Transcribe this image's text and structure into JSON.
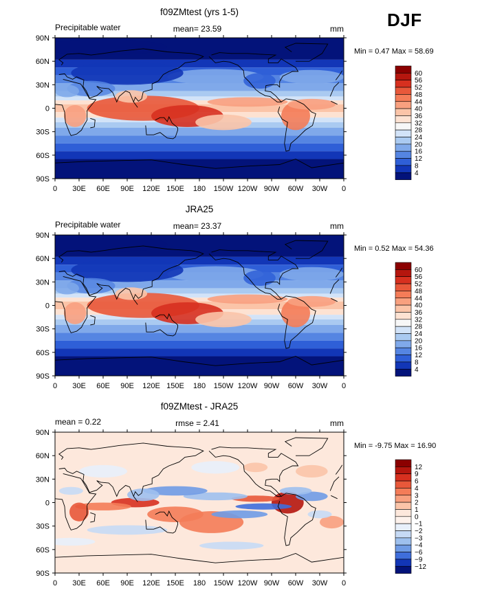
{
  "figure": {
    "season": "DJF"
  },
  "lon_ticks": [
    "0",
    "30E",
    "60E",
    "90E",
    "120E",
    "150E",
    "180",
    "150W",
    "120W",
    "90W",
    "60W",
    "30W",
    "0"
  ],
  "lat_ticks": [
    "90N",
    "60N",
    "30N",
    "0",
    "30S",
    "60S",
    "90S"
  ],
  "chart_data": [
    {
      "type": "heatmap",
      "title": "f09ZMtest (yrs 1-5)",
      "left_label": "Precipitable water",
      "center_label": "mean=  23.59",
      "units": "mm",
      "minmax": "Min =   0.47 Max =  58.69",
      "stats": {
        "mean": 23.59,
        "min": 0.47,
        "max": 58.69
      },
      "x": {
        "range": [
          0,
          360
        ],
        "ticks": [
          "0",
          "30E",
          "60E",
          "90E",
          "120E",
          "150E",
          "180",
          "150W",
          "120W",
          "90W",
          "60W",
          "30W",
          "0"
        ]
      },
      "y": {
        "range": [
          -90,
          90
        ],
        "ticks": [
          "90N",
          "60N",
          "30N",
          "0",
          "30S",
          "60S",
          "90S"
        ]
      },
      "colorbar": {
        "levels": [
          "60",
          "56",
          "52",
          "48",
          "44",
          "40",
          "36",
          "32",
          "28",
          "24",
          "20",
          "16",
          "12",
          "8",
          "4"
        ],
        "colors": [
          "#8b0000",
          "#b5160e",
          "#d7301f",
          "#e8583a",
          "#f47c58",
          "#f8a07f",
          "#fbc4a8",
          "#fde2d2",
          "#f7f7f7",
          "#d2e3f8",
          "#aacaf1",
          "#80a9ea",
          "#5585e2",
          "#2f5fd7",
          "#1236b7",
          "#03137a"
        ]
      }
    },
    {
      "type": "heatmap",
      "title": "JRA25",
      "left_label": "Precipitable water",
      "center_label": "mean=  23.37",
      "units": "mm",
      "minmax": "Min =   0.52 Max =  54.36",
      "stats": {
        "mean": 23.37,
        "min": 0.52,
        "max": 54.36
      },
      "x": {
        "range": [
          0,
          360
        ],
        "ticks": [
          "0",
          "30E",
          "60E",
          "90E",
          "120E",
          "150E",
          "180",
          "150W",
          "120W",
          "90W",
          "60W",
          "30W",
          "0"
        ]
      },
      "y": {
        "range": [
          -90,
          90
        ],
        "ticks": [
          "90N",
          "60N",
          "30N",
          "0",
          "30S",
          "60S",
          "90S"
        ]
      },
      "colorbar": {
        "levels": [
          "60",
          "56",
          "52",
          "48",
          "44",
          "40",
          "36",
          "32",
          "28",
          "24",
          "20",
          "16",
          "12",
          "8",
          "4"
        ],
        "colors": [
          "#8b0000",
          "#b5160e",
          "#d7301f",
          "#e8583a",
          "#f47c58",
          "#f8a07f",
          "#fbc4a8",
          "#fde2d2",
          "#f7f7f7",
          "#d2e3f8",
          "#aacaf1",
          "#80a9ea",
          "#5585e2",
          "#2f5fd7",
          "#1236b7",
          "#03137a"
        ]
      }
    },
    {
      "type": "heatmap",
      "title": "f09ZMtest - JRA25",
      "left_label": "mean =    0.22",
      "center_label": "rmse =    2.41",
      "units": "mm",
      "minmax": "Min =  -9.75 Max =  16.90",
      "stats": {
        "mean": 0.22,
        "rmse": 2.41,
        "min": -9.75,
        "max": 16.9
      },
      "x": {
        "range": [
          0,
          360
        ],
        "ticks": [
          "0",
          "30E",
          "60E",
          "90E",
          "120E",
          "150E",
          "180",
          "150W",
          "120W",
          "90W",
          "60W",
          "30W",
          "0"
        ]
      },
      "y": {
        "range": [
          -90,
          90
        ],
        "ticks": [
          "90N",
          "60N",
          "30N",
          "0",
          "30S",
          "60S",
          "90S"
        ]
      },
      "colorbar": {
        "levels": [
          "12",
          "9",
          "6",
          "4",
          "3",
          "2",
          "1",
          "0",
          "−1",
          "−2",
          "−3",
          "−4",
          "−6",
          "−9",
          "−12"
        ],
        "colors": [
          "#8b0000",
          "#b5160e",
          "#d7301f",
          "#e8583a",
          "#f47c58",
          "#f8a07f",
          "#fbc4a8",
          "#fde8dc",
          "#fdf2ec",
          "#e8f0fb",
          "#c6daf5",
          "#9ec0ee",
          "#6f9be5",
          "#3f6edb",
          "#1236b7",
          "#03137a"
        ]
      }
    }
  ]
}
